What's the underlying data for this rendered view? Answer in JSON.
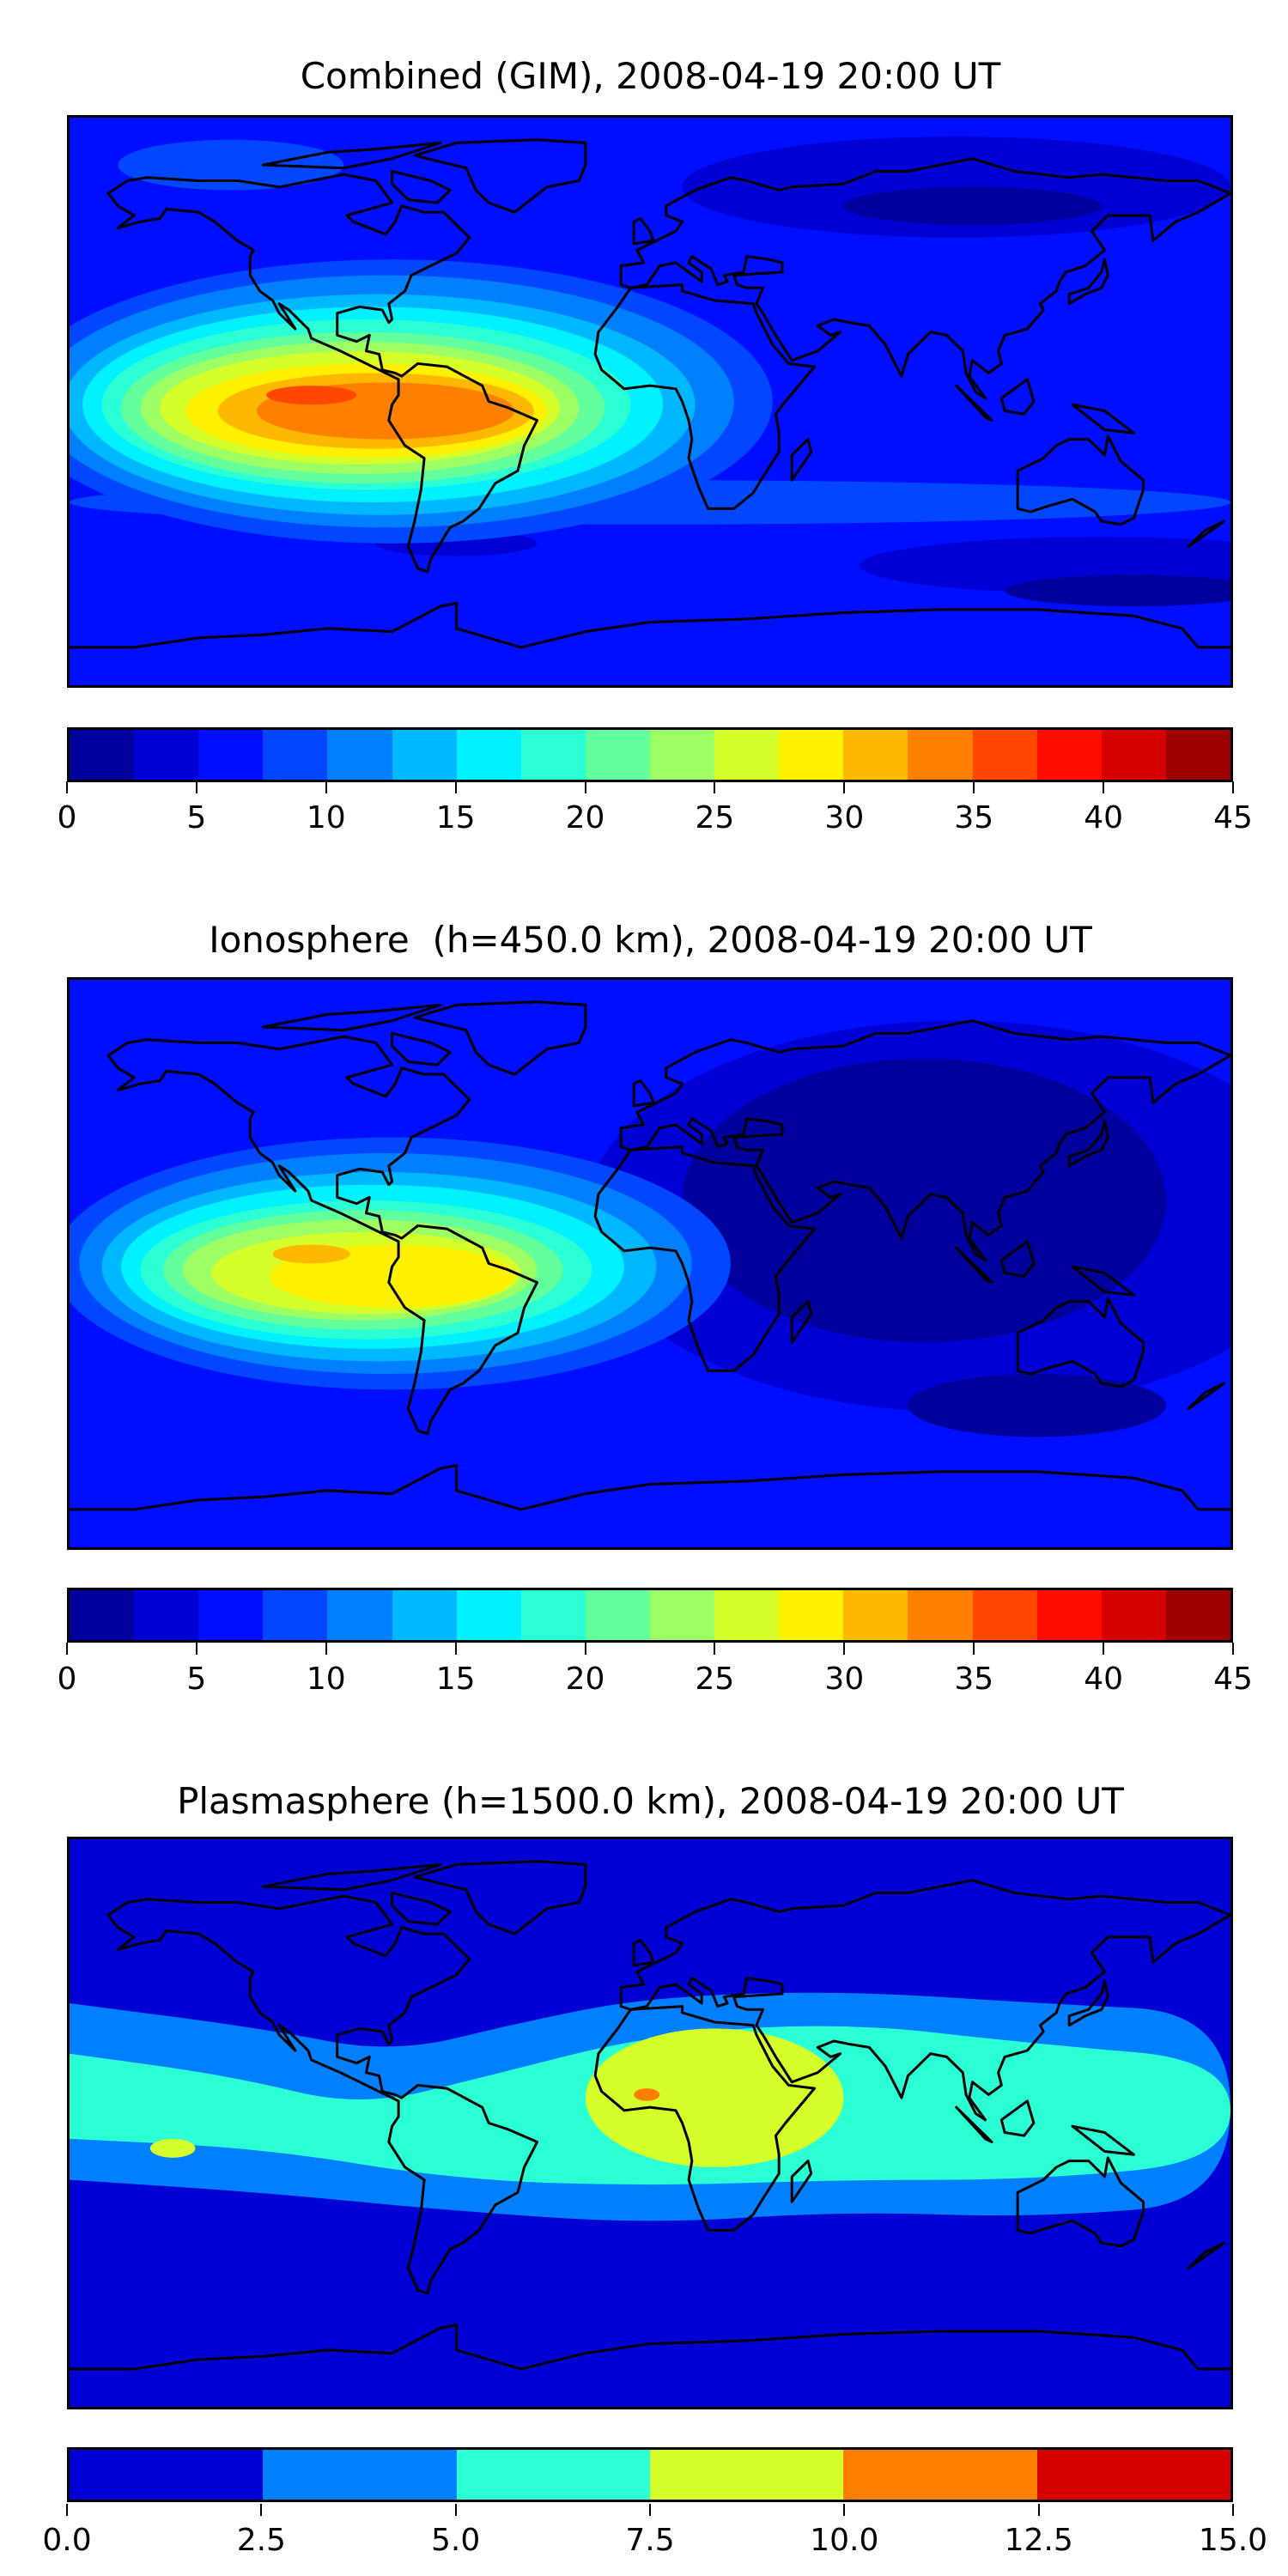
{
  "chart_data": [
    {
      "type": "heatmap",
      "title": "Combined (GIM), 2008-04-19 20:00 UT",
      "projection": "plate-carree",
      "colormap": "jet",
      "levels": [
        0,
        2.5,
        5,
        7.5,
        10,
        12.5,
        15,
        17.5,
        20,
        22.5,
        25,
        27.5,
        30,
        32.5,
        35,
        37.5,
        40,
        42.5,
        45
      ],
      "colorbar_ticks": [
        "0",
        "5",
        "10",
        "15",
        "20",
        "25",
        "30",
        "35",
        "40",
        "45"
      ],
      "colorbar_range": [
        0,
        45
      ],
      "max_region": "tropical eastern Pacific / South America, ~35-37.5"
    },
    {
      "type": "heatmap",
      "title": "Ionosphere  (h=450.0 km), 2008-04-19 20:00 UT",
      "projection": "plate-carree",
      "colormap": "jet",
      "levels": [
        0,
        2.5,
        5,
        7.5,
        10,
        12.5,
        15,
        17.5,
        20,
        22.5,
        25,
        27.5,
        30,
        32.5,
        35,
        37.5,
        40,
        42.5,
        45
      ],
      "colorbar_ticks": [
        "0",
        "5",
        "10",
        "15",
        "20",
        "25",
        "30",
        "35",
        "40",
        "45"
      ],
      "colorbar_range": [
        0,
        45
      ],
      "max_region": "tropical eastern Pacific / South America, ~30-32.5"
    },
    {
      "type": "heatmap",
      "title": "Plasmasphere (h=1500.0 km), 2008-04-19 20:00 UT",
      "projection": "plate-carree",
      "colormap": "jet",
      "levels": [
        0,
        2.5,
        5,
        7.5,
        10,
        12.5,
        15
      ],
      "colorbar_ticks": [
        "0.0",
        "2.5",
        "5.0",
        "7.5",
        "10.0",
        "12.5",
        "15.0"
      ],
      "colorbar_range": [
        0,
        15
      ],
      "max_region": "West Africa, ~10-12.5"
    }
  ]
}
